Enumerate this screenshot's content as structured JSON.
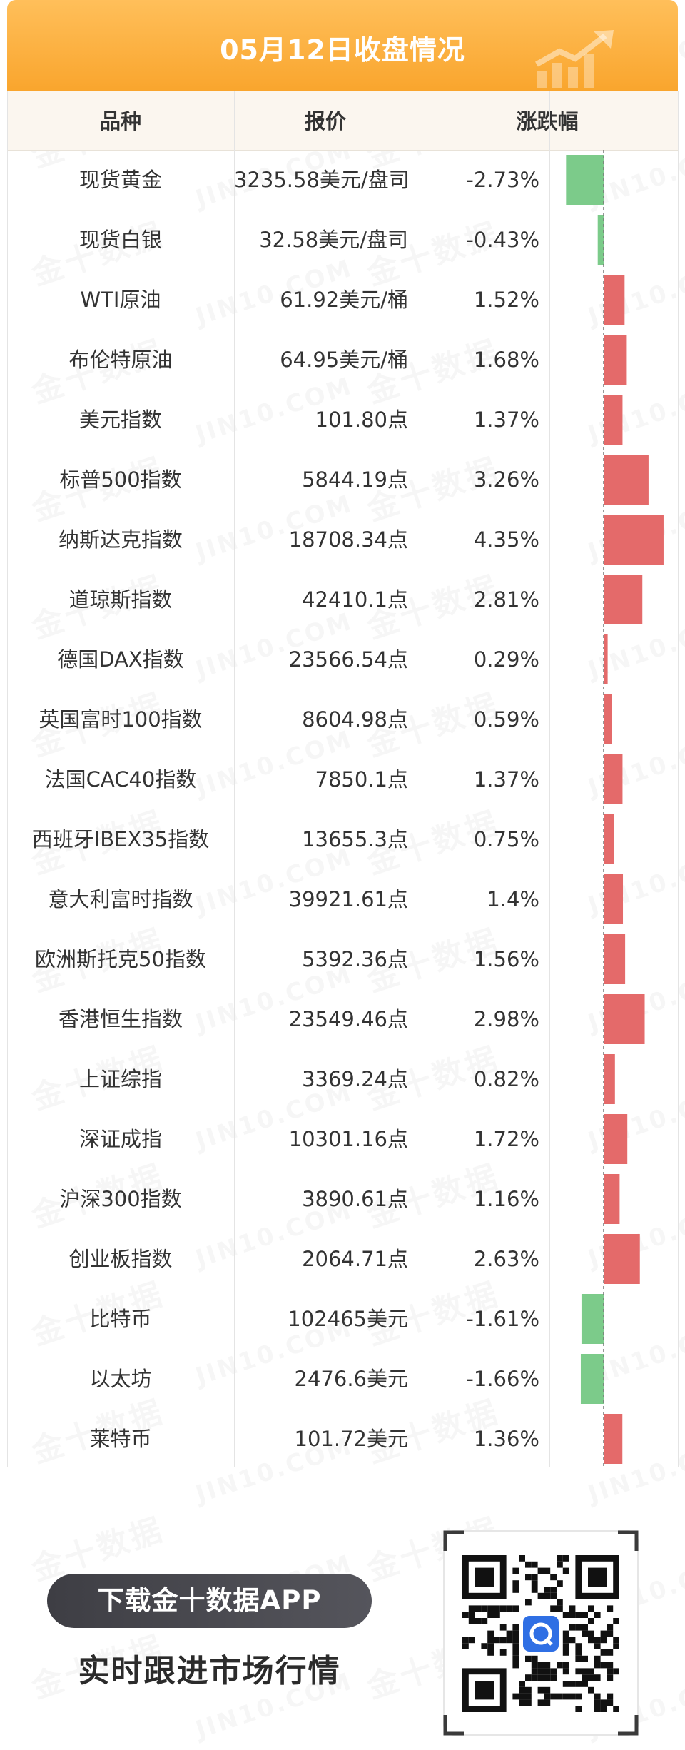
{
  "header": {
    "title": "05月12日收盘情况",
    "accent": "#f9a52d"
  },
  "columns": [
    "品种",
    "报价",
    "涨跌幅"
  ],
  "watermark": {
    "cn": "金十数据",
    "en": "JIN10.COM"
  },
  "rows": [
    {
      "name": "现货黄金",
      "price": "3235.58美元/盘司",
      "change": "-2.73%"
    },
    {
      "name": "现货白银",
      "price": "32.58美元/盘司",
      "change": "-0.43%"
    },
    {
      "name": "WTI原油",
      "price": "61.92美元/桶",
      "change": "1.52%"
    },
    {
      "name": "布伦特原油",
      "price": "64.95美元/桶",
      "change": "1.68%"
    },
    {
      "name": "美元指数",
      "price": "101.80点",
      "change": "1.37%"
    },
    {
      "name": "标普500指数",
      "price": "5844.19点",
      "change": "3.26%"
    },
    {
      "name": "纳斯达克指数",
      "price": "18708.34点",
      "change": "4.35%"
    },
    {
      "name": "道琼斯指数",
      "price": "42410.1点",
      "change": "2.81%"
    },
    {
      "name": "德国DAX指数",
      "price": "23566.54点",
      "change": "0.29%"
    },
    {
      "name": "英国富时100指数",
      "price": "8604.98点",
      "change": "0.59%"
    },
    {
      "name": "法国CAC40指数",
      "price": "7850.1点",
      "change": "1.37%"
    },
    {
      "name": "西班牙IBEX35指数",
      "price": "13655.3点",
      "change": "0.75%"
    },
    {
      "name": "意大利富时指数",
      "price": "39921.61点",
      "change": "1.4%"
    },
    {
      "name": "欧洲斯托克50指数",
      "price": "5392.36点",
      "change": "1.56%"
    },
    {
      "name": "香港恒生指数",
      "price": "23549.46点",
      "change": "2.98%"
    },
    {
      "name": "上证综指",
      "price": "3369.24点",
      "change": "0.82%"
    },
    {
      "name": "深证成指",
      "price": "10301.16点",
      "change": "1.72%"
    },
    {
      "name": "沪深300指数",
      "price": "3890.61点",
      "change": "1.16%"
    },
    {
      "name": "创业板指数",
      "price": "2064.71点",
      "change": "2.63%"
    },
    {
      "name": "比特币",
      "price": "102465美元",
      "change": "-1.61%"
    },
    {
      "name": "以太坊",
      "price": "2476.6美元",
      "change": "-1.66%"
    },
    {
      "name": "莱特币",
      "price": "101.72美元",
      "change": "1.36%"
    }
  ],
  "chart_data": {
    "type": "bar",
    "orientation": "horizontal",
    "categories": [
      "现货黄金",
      "现货白银",
      "WTI原油",
      "布伦特原油",
      "美元指数",
      "标普500指数",
      "纳斯达克指数",
      "道琼斯指数",
      "德国DAX指数",
      "英国富时100指数",
      "法国CAC40指数",
      "西班牙IBEX35指数",
      "意大利富时指数",
      "欧洲斯托克50指数",
      "香港恒生指数",
      "上证综指",
      "深证成指",
      "沪深300指数",
      "创业板指数",
      "比特币",
      "以太坊",
      "莱特币"
    ],
    "values": [
      -2.73,
      -0.43,
      1.52,
      1.68,
      1.37,
      3.26,
      4.35,
      2.81,
      0.29,
      0.59,
      1.37,
      0.75,
      1.4,
      1.56,
      2.98,
      0.82,
      1.72,
      1.16,
      2.63,
      -1.61,
      -1.66,
      1.36
    ],
    "unit": "%",
    "colors": {
      "positive": "#e46a6a",
      "negative": "#7ccb8a",
      "zero_line": "#777777"
    }
  },
  "promo": {
    "button": "下载金十数据APP",
    "subtitle": "实时跟进市场行情"
  },
  "qr": {
    "icon": "qr-code-icon",
    "center_logo": "jin10-app-logo-icon"
  }
}
